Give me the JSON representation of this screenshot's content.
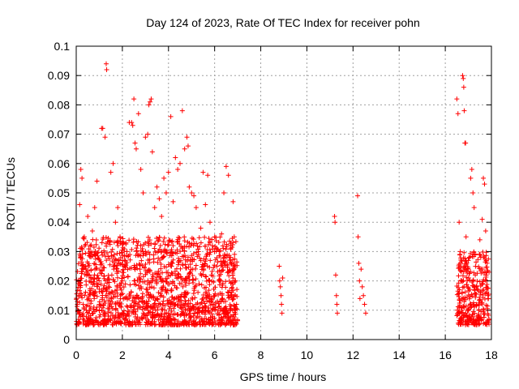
{
  "chart_data": {
    "type": "scatter",
    "title": "Day 124 of 2023, Rate Of TEC Index for receiver pohn",
    "xlabel": "GPS time / hours",
    "ylabel": "ROTI / TECUs",
    "xlim": [
      0,
      18
    ],
    "ylim": [
      0,
      0.1
    ],
    "xticks": [
      0,
      2,
      4,
      6,
      8,
      10,
      12,
      14,
      16,
      18
    ],
    "xtick_labels": [
      "0",
      "2",
      "4",
      "6",
      "8",
      "10",
      "12",
      "14",
      "16",
      "18"
    ],
    "yticks": [
      0,
      0.01,
      0.02,
      0.03,
      0.04,
      0.05,
      0.06,
      0.07,
      0.08,
      0.09,
      0.1
    ],
    "ytick_labels": [
      "0",
      "0.01",
      "0.02",
      "0.03",
      "0.04",
      "0.05",
      "0.06",
      "0.07",
      "0.08",
      "0.09",
      "0.1"
    ],
    "grid": true,
    "marker": "+",
    "marker_color": "#ff0000",
    "series": [
      {
        "name": "ROTI",
        "points": [
          [
            0.05,
            0.012
          ],
          [
            0.1,
            0.02
          ],
          [
            0.15,
            0.046
          ],
          [
            0.2,
            0.058
          ],
          [
            0.25,
            0.055
          ],
          [
            0.3,
            0.008
          ],
          [
            0.35,
            0.035
          ],
          [
            0.4,
            0.025
          ],
          [
            0.5,
            0.042
          ],
          [
            0.6,
            0.03
          ],
          [
            0.7,
            0.037
          ],
          [
            0.8,
            0.045
          ],
          [
            0.9,
            0.054
          ],
          [
            1.0,
            0.012
          ],
          [
            1.1,
            0.072
          ],
          [
            1.15,
            0.072
          ],
          [
            1.25,
            0.069
          ],
          [
            1.3,
            0.094
          ],
          [
            1.32,
            0.092
          ],
          [
            1.4,
            0.018
          ],
          [
            1.5,
            0.057
          ],
          [
            1.6,
            0.06
          ],
          [
            1.7,
            0.04
          ],
          [
            1.8,
            0.045
          ],
          [
            1.9,
            0.035
          ],
          [
            2.0,
            0.02
          ],
          [
            2.1,
            0.027
          ],
          [
            2.2,
            0.03
          ],
          [
            2.3,
            0.074
          ],
          [
            2.4,
            0.074
          ],
          [
            2.45,
            0.073
          ],
          [
            2.5,
            0.082
          ],
          [
            2.55,
            0.067
          ],
          [
            2.6,
            0.065
          ],
          [
            2.7,
            0.077
          ],
          [
            2.8,
            0.058
          ],
          [
            2.9,
            0.05
          ],
          [
            3.0,
            0.069
          ],
          [
            3.1,
            0.07
          ],
          [
            3.15,
            0.08
          ],
          [
            3.2,
            0.081
          ],
          [
            3.25,
            0.082
          ],
          [
            3.3,
            0.064
          ],
          [
            3.4,
            0.045
          ],
          [
            3.5,
            0.052
          ],
          [
            3.6,
            0.048
          ],
          [
            3.7,
            0.042
          ],
          [
            3.8,
            0.055
          ],
          [
            3.9,
            0.05
          ],
          [
            4.0,
            0.057
          ],
          [
            4.1,
            0.076
          ],
          [
            4.2,
            0.047
          ],
          [
            4.3,
            0.062
          ],
          [
            4.4,
            0.058
          ],
          [
            4.5,
            0.06
          ],
          [
            4.6,
            0.078
          ],
          [
            4.7,
            0.065
          ],
          [
            4.8,
            0.069
          ],
          [
            4.85,
            0.066
          ],
          [
            4.9,
            0.052
          ],
          [
            5.0,
            0.05
          ],
          [
            5.1,
            0.049
          ],
          [
            5.2,
            0.045
          ],
          [
            5.3,
            0.03
          ],
          [
            5.4,
            0.038
          ],
          [
            5.5,
            0.057
          ],
          [
            5.6,
            0.046
          ],
          [
            5.7,
            0.056
          ],
          [
            5.8,
            0.04
          ],
          [
            5.9,
            0.032
          ],
          [
            6.0,
            0.035
          ],
          [
            6.1,
            0.025
          ],
          [
            6.2,
            0.03
          ],
          [
            6.3,
            0.036
          ],
          [
            6.4,
            0.05
          ],
          [
            6.5,
            0.059
          ],
          [
            6.6,
            0.056
          ],
          [
            6.7,
            0.015
          ],
          [
            6.8,
            0.047
          ],
          [
            6.85,
            0.035
          ],
          [
            6.9,
            0.02
          ],
          [
            8.8,
            0.025
          ],
          [
            8.82,
            0.02
          ],
          [
            8.85,
            0.018
          ],
          [
            8.88,
            0.015
          ],
          [
            8.9,
            0.012
          ],
          [
            8.92,
            0.009
          ],
          [
            8.95,
            0.021
          ],
          [
            11.2,
            0.042
          ],
          [
            11.22,
            0.04
          ],
          [
            11.25,
            0.022
          ],
          [
            11.28,
            0.015
          ],
          [
            11.3,
            0.012
          ],
          [
            11.32,
            0.009
          ],
          [
            12.2,
            0.049
          ],
          [
            12.22,
            0.035
          ],
          [
            12.25,
            0.026
          ],
          [
            12.28,
            0.02
          ],
          [
            12.3,
            0.014
          ],
          [
            12.35,
            0.024
          ],
          [
            12.4,
            0.018
          ],
          [
            12.45,
            0.015
          ],
          [
            12.5,
            0.012
          ],
          [
            12.55,
            0.009
          ],
          [
            16.5,
            0.082
          ],
          [
            16.55,
            0.077
          ],
          [
            16.6,
            0.04
          ],
          [
            16.65,
            0.03
          ],
          [
            16.7,
            0.02
          ],
          [
            16.75,
            0.09
          ],
          [
            16.78,
            0.089
          ],
          [
            16.8,
            0.086
          ],
          [
            16.82,
            0.078
          ],
          [
            16.85,
            0.067
          ],
          [
            16.88,
            0.067
          ],
          [
            16.9,
            0.035
          ],
          [
            16.95,
            0.02
          ],
          [
            17.0,
            0.01
          ],
          [
            17.05,
            0.028
          ],
          [
            17.1,
            0.055
          ],
          [
            17.15,
            0.058
          ],
          [
            17.2,
            0.05
          ],
          [
            17.25,
            0.045
          ],
          [
            17.3,
            0.022
          ],
          [
            17.35,
            0.018
          ],
          [
            17.5,
            0.034
          ],
          [
            17.55,
            0.024
          ],
          [
            17.6,
            0.041
          ],
          [
            17.65,
            0.055
          ],
          [
            17.7,
            0.053
          ],
          [
            17.75,
            0.037
          ],
          [
            17.8,
            0.02
          ],
          [
            17.85,
            0.015
          ]
        ]
      }
    ],
    "dense_bands": [
      {
        "x": [
          0,
          7
        ],
        "y": [
          0.005,
          0.035
        ]
      },
      {
        "x": [
          16.5,
          17.9
        ],
        "y": [
          0.005,
          0.03
        ]
      }
    ]
  }
}
